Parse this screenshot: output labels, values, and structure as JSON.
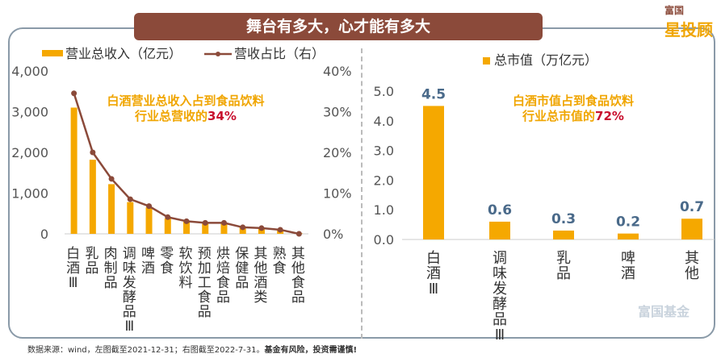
{
  "banner": "舞台有多大，心才能有多大",
  "logo": {
    "top": "富国",
    "main": "星投顾"
  },
  "watermark": "富国基金",
  "source": {
    "text": "数据来源：wind，左图截至2021-12-31；右图截至2022-7-31。",
    "bold": "基金有风险，投资需谨慎!"
  },
  "colors": {
    "bar": "#f5a800",
    "line": "#8b4a3a",
    "highlight": "#c8102e",
    "value_label": "#4a6a8a"
  },
  "left_annotation": {
    "line1": "白酒营业总收入占到食品饮料",
    "line2": "行业总营收的",
    "highlight": "34%"
  },
  "right_annotation": {
    "line1": "白酒市值占到食品饮料",
    "line2": "行业总市值的",
    "highlight": "72%"
  },
  "chart_data": [
    {
      "type": "bar+line",
      "categories": [
        "白酒Ⅲ",
        "乳品",
        "肉制品",
        "调味发酵品Ⅲ",
        "啤酒",
        "零食",
        "软饮料",
        "预加工食品",
        "烘焙食品",
        "保健品",
        "其他酒类",
        "熟食",
        "其他食品"
      ],
      "series": [
        {
          "name": "营业总收入（亿元）",
          "type": "bar",
          "axis": "left",
          "values": [
            3100,
            1820,
            1220,
            780,
            650,
            380,
            300,
            280,
            270,
            160,
            130,
            100,
            20
          ]
        },
        {
          "name": "营收占比（右）",
          "type": "line",
          "axis": "right",
          "values": [
            34.5,
            20,
            13.5,
            8.5,
            6.8,
            4.1,
            3.1,
            2.7,
            2.7,
            1.6,
            1.4,
            1.0,
            0
          ]
        }
      ],
      "ylim": [
        0,
        4000
      ],
      "yticks": [
        "0",
        "1,000",
        "2,000",
        "3,000",
        "4,000"
      ],
      "y2lim": [
        0,
        40
      ],
      "y2ticks": [
        "0%",
        "10%",
        "20%",
        "30%",
        "40%"
      ],
      "legend": "top",
      "grid": false
    },
    {
      "type": "bar",
      "categories": [
        "白酒Ⅲ",
        "调味发酵品Ⅲ",
        "乳品",
        "啤酒",
        "其他"
      ],
      "series": [
        {
          "name": "总市值（万亿元）",
          "values": [
            4.5,
            0.6,
            0.3,
            0.2,
            0.7
          ]
        }
      ],
      "data_labels": [
        "4.5",
        "0.6",
        "0.3",
        "0.2",
        "0.7"
      ],
      "ylim": [
        0,
        5
      ],
      "yticks": [
        "0.0",
        "1.0",
        "2.0",
        "3.0",
        "4.0",
        "5.0"
      ],
      "legend": "top",
      "grid": false
    }
  ]
}
